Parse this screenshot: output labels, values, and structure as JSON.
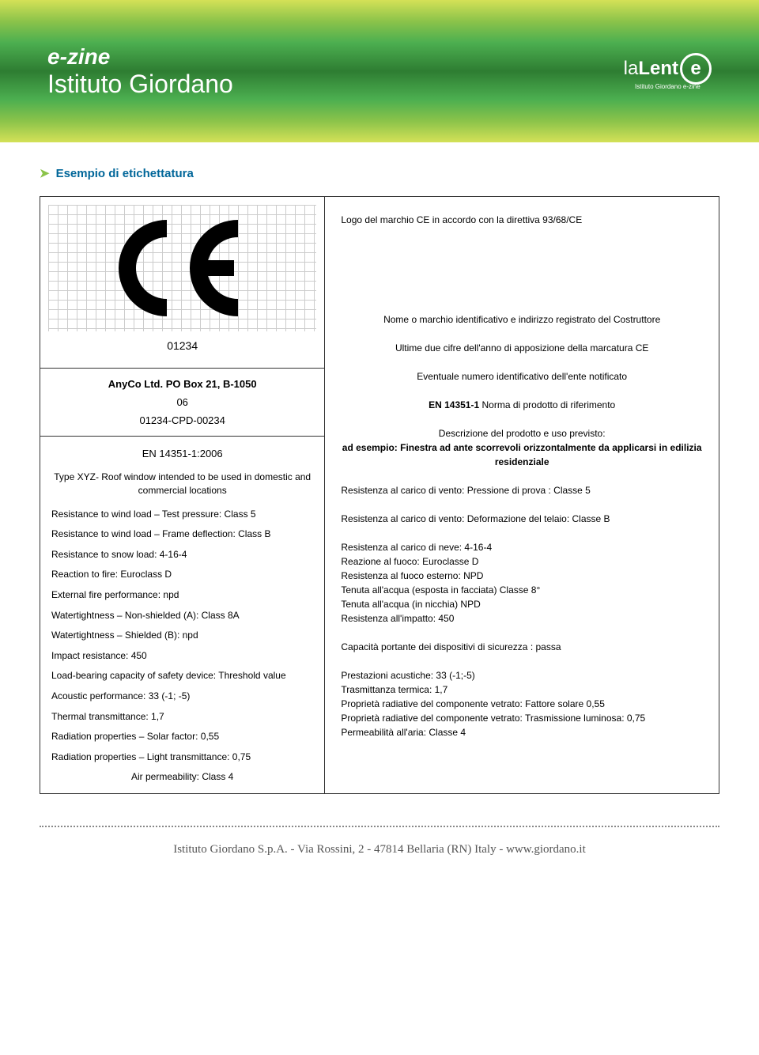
{
  "header": {
    "ezine_line1": "e-zine",
    "ezine_line2": "Istituto Giordano",
    "lalente_la": "la",
    "lalente_lent": "Lent",
    "lalente_e": "e",
    "lalente_sub": "Istituto Giordano e-zine"
  },
  "section": {
    "arrow": "➤",
    "title": "Esempio di etichettatura"
  },
  "label_left": {
    "ce_number": "01234",
    "company_name": "AnyCo Ltd. PO Box 21, B-1050",
    "year": "06",
    "cpd": "01234-CPD-00234",
    "norm": "EN 14351-1:2006",
    "type_desc": "Type XYZ- Roof window intended to be used in domestic and commercial locations",
    "specs": [
      "Resistance to wind load – Test pressure: Class 5",
      "Resistance to wind load – Frame deflection: Class B",
      "Resistance to snow load: 4-16-4",
      "Reaction to fire: Euroclass D",
      "External fire performance: npd",
      "Watertightness – Non-shielded (A): Class 8A",
      "Watertightness – Shielded (B): npd",
      "Impact resistance: 450",
      "Load-bearing capacity of safety device: Threshold value",
      "Acoustic performance: 33 (-1; -5)",
      "Thermal transmittance: 1,7",
      "Radiation properties – Solar factor: 0,55",
      "Radiation properties – Light transmittance: 0,75"
    ],
    "air_perm": "Air permeability: Class 4"
  },
  "label_right": {
    "line_logo": "Logo del marchio CE in accordo con la direttiva 93/68/CE",
    "line_nome": "Nome o marchio identificativo e indirizzo registrato del Costruttore",
    "line_ultime": "Ultime due cifre dell'anno di apposizione della marcatura CE",
    "line_eventuale": "Eventuale numero identificativo dell'ente notificato",
    "line_norma_bold": "EN 14351-1",
    "line_norma_rest": " Norma di prodotto di riferimento",
    "line_descrizione": "Descrizione del prodotto e uso previsto:",
    "line_esempio": "ad esempio: Finestra ad ante scorrevoli orizzontalmente da applicarsi in edilizia residenziale",
    "specs1": "Resistenza al carico di vento: Pressione di prova : Classe 5",
    "specs2": "Resistenza al carico di vento: Deformazione del telaio: Classe B",
    "specs3": [
      "Resistenza al carico di neve: 4-16-4",
      "Reazione al fuoco: Euroclasse D",
      "Resistenza al fuoco esterno: NPD",
      "Tenuta all'acqua (esposta in facciata) Classe 8°",
      "Tenuta all'acqua (in nicchia) NPD",
      "Resistenza all'impatto: 450"
    ],
    "specs4": "Capacità portante dei dispositivi di sicurezza : passa",
    "specs5": [
      "Prestazioni acustiche: 33 (-1;-5)",
      "Trasmittanza termica: 1,7",
      "Proprietà radiative del componente vetrato: Fattore solare 0,55",
      "Proprietà radiative del componente vetrato: Trasmissione luminosa: 0,75",
      "Permeabilità all'aria: Classe 4"
    ]
  },
  "footer": {
    "text": "Istituto Giordano S.p.A. - Via Rossini, 2 - 47814 Bellaria (RN) Italy - www.giordano.it"
  },
  "colors": {
    "title_color": "#006699",
    "arrow_color": "#8bc34a"
  }
}
